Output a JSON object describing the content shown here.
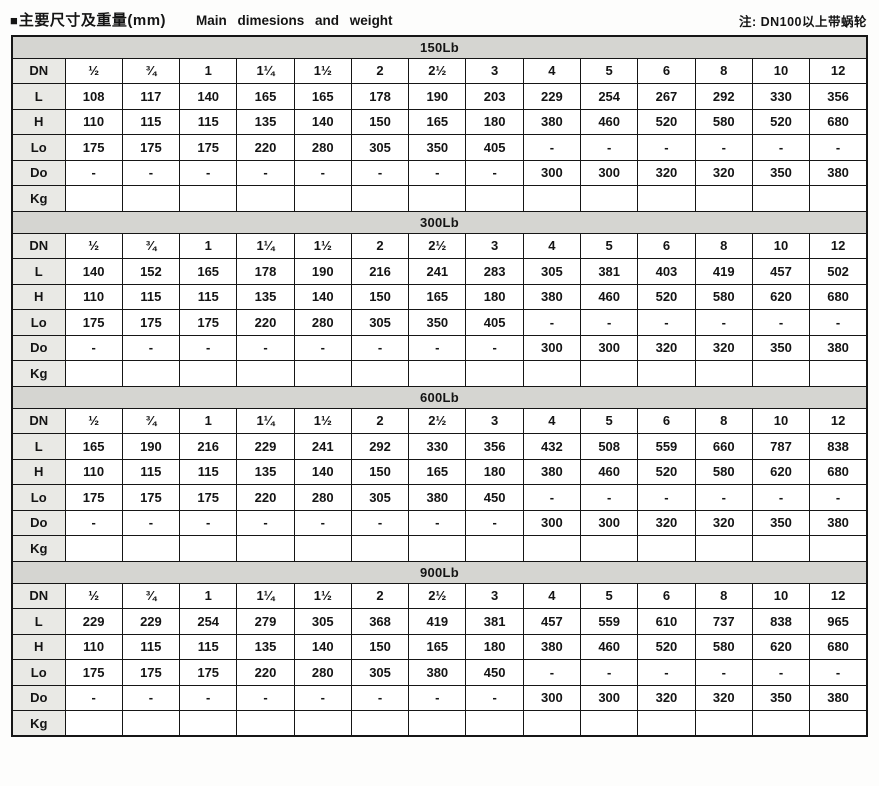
{
  "header": {
    "bullet": "■",
    "title_zh": "主要尺寸及重量(mm)",
    "title_en": "Main dimesions and weight",
    "note": "注: DN100以上带蜗轮"
  },
  "table": {
    "row_labels": [
      "DN",
      "L",
      "H",
      "Lo",
      "Do",
      "Kg"
    ],
    "dn_sizes": [
      "½",
      "¾",
      "1",
      "1¼",
      "1½",
      "2",
      "2½",
      "3",
      "4",
      "5",
      "6",
      "8",
      "10",
      "12"
    ],
    "sections": [
      {
        "pressure_class": "150Lb",
        "rows": {
          "L": [
            "108",
            "117",
            "140",
            "165",
            "165",
            "178",
            "190",
            "203",
            "229",
            "254",
            "267",
            "292",
            "330",
            "356"
          ],
          "H": [
            "110",
            "115",
            "115",
            "135",
            "140",
            "150",
            "165",
            "180",
            "380",
            "460",
            "520",
            "580",
            "520",
            "680"
          ],
          "Lo": [
            "175",
            "175",
            "175",
            "220",
            "280",
            "305",
            "350",
            "405",
            "-",
            "-",
            "-",
            "-",
            "-",
            "-"
          ],
          "Do": [
            "-",
            "-",
            "-",
            "-",
            "-",
            "-",
            "-",
            "-",
            "300",
            "300",
            "320",
            "320",
            "350",
            "380"
          ],
          "Kg": [
            "",
            "",
            "",
            "",
            "",
            "",
            "",
            "",
            "",
            "",
            "",
            "",
            "",
            ""
          ]
        }
      },
      {
        "pressure_class": "300Lb",
        "rows": {
          "L": [
            "140",
            "152",
            "165",
            "178",
            "190",
            "216",
            "241",
            "283",
            "305",
            "381",
            "403",
            "419",
            "457",
            "502"
          ],
          "H": [
            "110",
            "115",
            "115",
            "135",
            "140",
            "150",
            "165",
            "180",
            "380",
            "460",
            "520",
            "580",
            "620",
            "680"
          ],
          "Lo": [
            "175",
            "175",
            "175",
            "220",
            "280",
            "305",
            "350",
            "405",
            "-",
            "-",
            "-",
            "-",
            "-",
            "-"
          ],
          "Do": [
            "-",
            "-",
            "-",
            "-",
            "-",
            "-",
            "-",
            "-",
            "300",
            "300",
            "320",
            "320",
            "350",
            "380"
          ],
          "Kg": [
            "",
            "",
            "",
            "",
            "",
            "",
            "",
            "",
            "",
            "",
            "",
            "",
            "",
            ""
          ]
        }
      },
      {
        "pressure_class": "600Lb",
        "rows": {
          "L": [
            "165",
            "190",
            "216",
            "229",
            "241",
            "292",
            "330",
            "356",
            "432",
            "508",
            "559",
            "660",
            "787",
            "838"
          ],
          "H": [
            "110",
            "115",
            "115",
            "135",
            "140",
            "150",
            "165",
            "180",
            "380",
            "460",
            "520",
            "580",
            "620",
            "680"
          ],
          "Lo": [
            "175",
            "175",
            "175",
            "220",
            "280",
            "305",
            "380",
            "450",
            "-",
            "-",
            "-",
            "-",
            "-",
            "-"
          ],
          "Do": [
            "-",
            "-",
            "-",
            "-",
            "-",
            "-",
            "-",
            "-",
            "300",
            "300",
            "320",
            "320",
            "350",
            "380"
          ],
          "Kg": [
            "",
            "",
            "",
            "",
            "",
            "",
            "",
            "",
            "",
            "",
            "",
            "",
            "",
            ""
          ]
        }
      },
      {
        "pressure_class": "900Lb",
        "rows": {
          "L": [
            "229",
            "229",
            "254",
            "279",
            "305",
            "368",
            "419",
            "381",
            "457",
            "559",
            "610",
            "737",
            "838",
            "965"
          ],
          "H": [
            "110",
            "115",
            "115",
            "135",
            "140",
            "150",
            "165",
            "180",
            "380",
            "460",
            "520",
            "580",
            "620",
            "680"
          ],
          "Lo": [
            "175",
            "175",
            "175",
            "220",
            "280",
            "305",
            "380",
            "450",
            "-",
            "-",
            "-",
            "-",
            "-",
            "-"
          ],
          "Do": [
            "-",
            "-",
            "-",
            "-",
            "-",
            "-",
            "-",
            "-",
            "300",
            "300",
            "320",
            "320",
            "350",
            "380"
          ],
          "Kg": [
            "",
            "",
            "",
            "",
            "",
            "",
            "",
            "",
            "",
            "",
            "",
            "",
            "",
            ""
          ]
        }
      }
    ],
    "colors": {
      "section_band_bg": "#d5d5d1",
      "label_col_bg": "#e9e9e5",
      "border": "#161616",
      "cell_bg": "#ffffff"
    }
  }
}
